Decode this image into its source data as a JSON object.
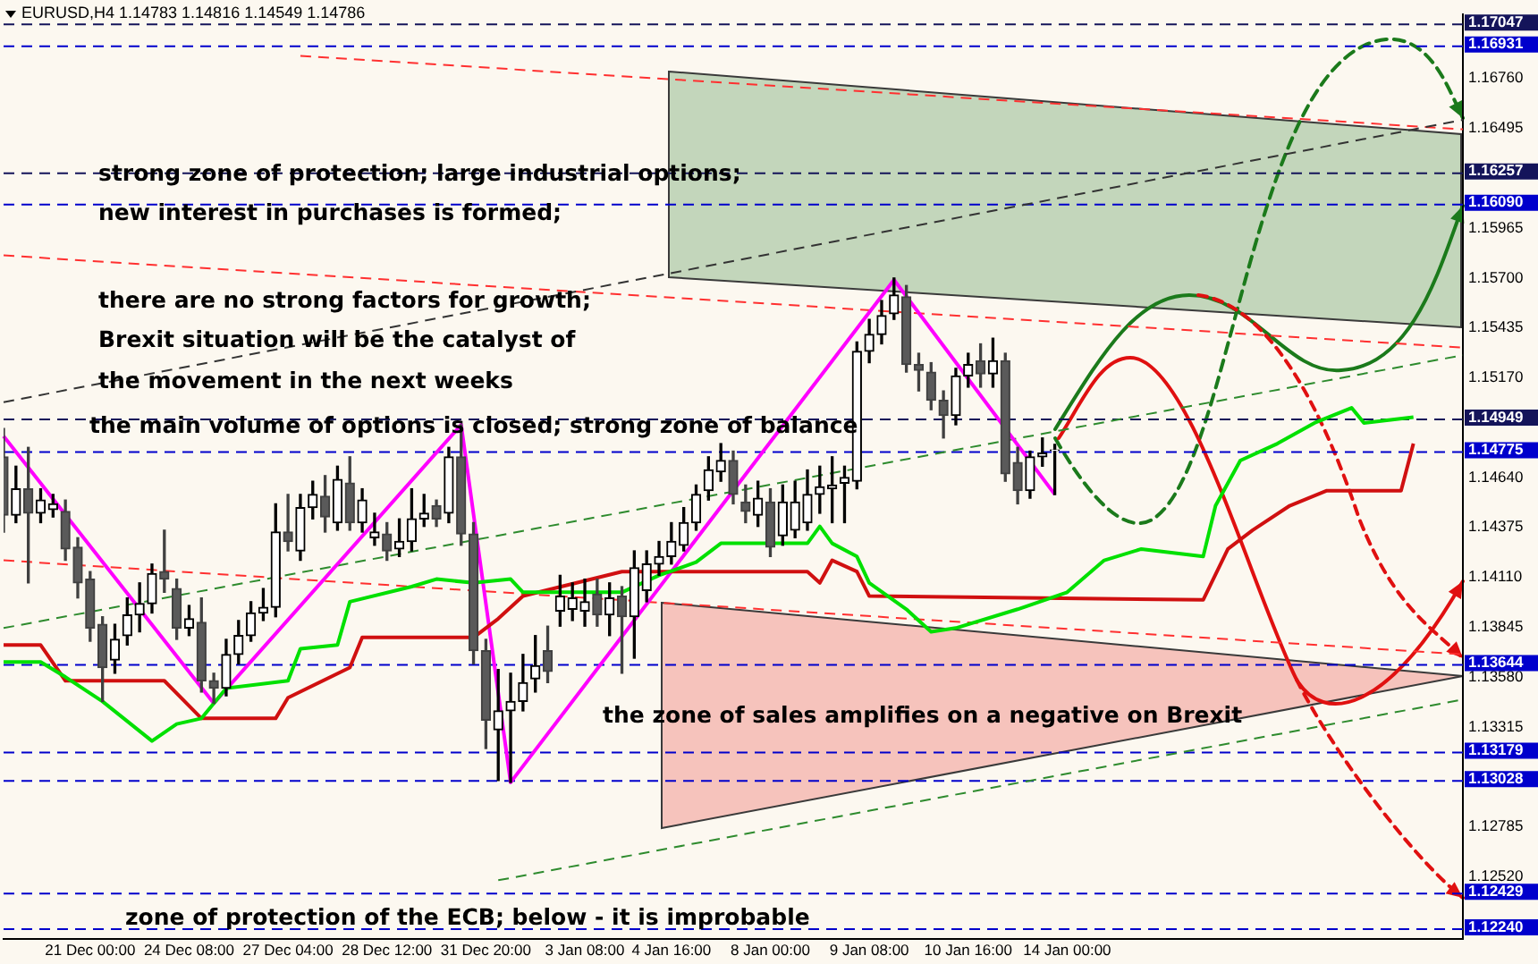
{
  "chart_data": {
    "type": "candlestick",
    "title": "EURUSD,H4 1.14783 1.14816 1.14549 1.14786",
    "categories": [
      null,
      null,
      null,
      null,
      null,
      null,
      null,
      "21 Dec 00:00",
      null,
      null,
      null,
      null,
      null,
      null,
      null,
      "24 Dec 08:00",
      null,
      null,
      null,
      null,
      null,
      null,
      null,
      "27 Dec 04:00",
      null,
      null,
      null,
      null,
      null,
      null,
      null,
      "28 Dec 12:00",
      null,
      null,
      null,
      null,
      null,
      null,
      null,
      "31 Dec 20:00",
      null,
      null,
      null,
      null,
      null,
      null,
      null,
      "3 Jan 08:00",
      null,
      null,
      null,
      null,
      null,
      null,
      "4 Jan 16:00",
      null,
      null,
      null,
      null,
      null,
      null,
      null,
      "8 Jan 00:00",
      null,
      null,
      null,
      null,
      null,
      null,
      null,
      "9 Jan 08:00",
      null,
      null,
      null,
      null,
      null,
      null,
      null,
      "10 Jan 16:00",
      null,
      null,
      null,
      null,
      null,
      null,
      null,
      "14 Jan 00:00",
      null,
      null,
      null,
      null,
      null,
      null,
      null,
      null,
      null,
      null,
      null,
      null,
      null,
      null,
      null,
      null,
      null,
      null,
      null,
      null,
      null,
      null,
      null,
      null,
      null,
      null,
      null,
      null,
      null,
      null,
      null,
      null
    ],
    "ohlc": [
      [
        1.1475,
        1.149,
        1.1435,
        1.1444
      ],
      [
        1.1444,
        1.147,
        1.144,
        1.1458
      ],
      [
        1.1458,
        1.148,
        1.1408,
        1.1445
      ],
      [
        1.1445,
        1.1458,
        1.144,
        1.1452
      ],
      [
        1.1447,
        1.1455,
        1.1443,
        1.145
      ],
      [
        1.1446,
        1.1452,
        1.142,
        1.1426
      ],
      [
        1.1427,
        1.1432,
        1.14,
        1.1408
      ],
      [
        1.141,
        1.1414,
        1.1377,
        1.1384
      ],
      [
        1.1386,
        1.139,
        1.1345,
        1.1363
      ],
      [
        1.1367,
        1.1386,
        1.136,
        1.1378
      ],
      [
        1.138,
        1.14,
        1.1375,
        1.1391
      ],
      [
        1.1391,
        1.1408,
        1.1382,
        1.1397
      ],
      [
        1.1397,
        1.1418,
        1.1392,
        1.1413
      ],
      [
        1.1414,
        1.1436,
        1.1403,
        1.141
      ],
      [
        1.1405,
        1.141,
        1.1378,
        1.1384
      ],
      [
        1.1384,
        1.1396,
        1.138,
        1.1389
      ],
      [
        1.1387,
        1.14,
        1.135,
        1.1356
      ],
      [
        1.1356,
        1.136,
        1.1344,
        1.1352
      ],
      [
        1.1352,
        1.1378,
        1.1348,
        1.137
      ],
      [
        1.137,
        1.1388,
        1.1365,
        1.138
      ],
      [
        1.138,
        1.1398,
        1.1377,
        1.1392
      ],
      [
        1.1392,
        1.1405,
        1.1388,
        1.1395
      ],
      [
        1.1395,
        1.145,
        1.139,
        1.1435
      ],
      [
        1.1435,
        1.1455,
        1.1425,
        1.143
      ],
      [
        1.1425,
        1.1455,
        1.142,
        1.1448
      ],
      [
        1.1448,
        1.1462,
        1.1442,
        1.1455
      ],
      [
        1.1454,
        1.1465,
        1.1435,
        1.1443
      ],
      [
        1.144,
        1.147,
        1.1436,
        1.1463
      ],
      [
        1.1461,
        1.1475,
        1.1436,
        1.144
      ],
      [
        1.144,
        1.1458,
        1.1435,
        1.1452
      ],
      [
        1.1432,
        1.1445,
        1.1428,
        1.1435
      ],
      [
        1.1434,
        1.144,
        1.142,
        1.1425
      ],
      [
        1.1426,
        1.1442,
        1.1422,
        1.143
      ],
      [
        1.143,
        1.1458,
        1.1425,
        1.1442
      ],
      [
        1.1442,
        1.1455,
        1.1438,
        1.1445
      ],
      [
        1.1449,
        1.1452,
        1.1438,
        1.1442
      ],
      [
        1.1445,
        1.148,
        1.144,
        1.1475
      ],
      [
        1.1475,
        1.1492,
        1.1428,
        1.1434
      ],
      [
        1.1434,
        1.144,
        1.1365,
        1.1372
      ],
      [
        1.1372,
        1.1378,
        1.132,
        1.1335
      ],
      [
        1.133,
        1.1362,
        1.1303,
        1.134
      ],
      [
        1.134,
        1.136,
        1.1302,
        1.1345
      ],
      [
        1.1345,
        1.137,
        1.134,
        1.1355
      ],
      [
        1.1357,
        1.138,
        1.135,
        1.1364
      ],
      [
        1.1372,
        1.1385,
        1.1355,
        1.1361
      ],
      [
        1.1393,
        1.1412,
        1.1385,
        1.1401
      ],
      [
        1.1394,
        1.1408,
        1.1388,
        1.14
      ],
      [
        1.1393,
        1.141,
        1.1385,
        1.1398
      ],
      [
        1.1402,
        1.141,
        1.1385,
        1.1391
      ],
      [
        1.1391,
        1.1408,
        1.138,
        1.14
      ],
      [
        1.1401,
        1.1406,
        1.136,
        1.139
      ],
      [
        1.139,
        1.1425,
        1.1368,
        1.1416
      ],
      [
        1.1404,
        1.1425,
        1.1398,
        1.1418
      ],
      [
        1.1418,
        1.143,
        1.1412,
        1.1422
      ],
      [
        1.1422,
        1.144,
        1.1418,
        1.143
      ],
      [
        1.1428,
        1.1448,
        1.1425,
        1.144
      ],
      [
        1.144,
        1.146,
        1.1436,
        1.1455
      ],
      [
        1.1457,
        1.1475,
        1.1452,
        1.1468
      ],
      [
        1.1467,
        1.1482,
        1.1462,
        1.1473
      ],
      [
        1.1473,
        1.1478,
        1.145,
        1.1455
      ],
      [
        1.1451,
        1.146,
        1.144,
        1.1446
      ],
      [
        1.1444,
        1.1462,
        1.1438,
        1.1453
      ],
      [
        1.1451,
        1.1458,
        1.1422,
        1.1427
      ],
      [
        1.1433,
        1.146,
        1.1428,
        1.1451
      ],
      [
        1.1436,
        1.1462,
        1.1432,
        1.1451
      ],
      [
        1.144,
        1.1468,
        1.1436,
        1.1455
      ],
      [
        1.1455,
        1.147,
        1.1445,
        1.1459
      ],
      [
        1.1458,
        1.1475,
        1.144,
        1.146
      ],
      [
        1.1461,
        1.147,
        1.144,
        1.1464
      ],
      [
        1.1462,
        1.1536,
        1.1458,
        1.1531
      ],
      [
        1.1531,
        1.1548,
        1.1525,
        1.154
      ],
      [
        1.154,
        1.1558,
        1.1535,
        1.155
      ],
      [
        1.1551,
        1.157,
        1.1548,
        1.1561
      ],
      [
        1.156,
        1.1566,
        1.152,
        1.1524
      ],
      [
        1.1524,
        1.153,
        1.151,
        1.1521
      ],
      [
        1.152,
        1.1525,
        1.15,
        1.1505
      ],
      [
        1.1505,
        1.151,
        1.1485,
        1.1497
      ],
      [
        1.1497,
        1.1522,
        1.1492,
        1.1518
      ],
      [
        1.1518,
        1.153,
        1.1512,
        1.1524
      ],
      [
        1.1526,
        1.1535,
        1.1512,
        1.1519
      ],
      [
        1.1519,
        1.1538,
        1.1512,
        1.1526
      ],
      [
        1.1526,
        1.153,
        1.1462,
        1.1466
      ],
      [
        1.1472,
        1.148,
        1.145,
        1.1457
      ],
      [
        1.1457,
        1.1478,
        1.1453,
        1.1475
      ],
      [
        1.1475,
        1.1485,
        1.147,
        1.1477
      ],
      [
        1.14783,
        1.14816,
        1.14549,
        1.14786
      ],
      null,
      null,
      null,
      null,
      null,
      null,
      null,
      null,
      null,
      null,
      null,
      null,
      null,
      null,
      null,
      null,
      null,
      null,
      null,
      null,
      null,
      null,
      null,
      null,
      null,
      null,
      null,
      null,
      null,
      null,
      null,
      null,
      null
    ],
    "series": [
      {
        "type": "line",
        "color": "#00e000",
        "line_style": "solid",
        "values": [
          1.1366,
          null,
          null,
          1.1366,
          null,
          1.1358,
          null,
          null,
          1.1345,
          null,
          null,
          null,
          1.1324,
          null,
          1.1333,
          null,
          1.1336,
          null,
          1.1352,
          null,
          null,
          null,
          null,
          1.1356,
          1.1373,
          null,
          null,
          1.1375,
          1.1398,
          null,
          null,
          null,
          null,
          1.1406,
          null,
          1.141,
          null,
          null,
          1.1408,
          null,
          null,
          1.141,
          1.1403,
          null,
          null,
          null,
          null,
          null,
          null,
          null,
          1.1403,
          null,
          null,
          1.1412,
          null,
          null,
          1.1419,
          null,
          1.1429,
          null,
          null,
          null,
          null,
          null,
          null,
          1.1429,
          1.1438,
          1.1429,
          null,
          1.1422,
          1.1408,
          null,
          null,
          1.1394,
          null,
          1.1382,
          null,
          1.1384,
          null,
          null,
          null,
          null,
          1.1394,
          null,
          null,
          null,
          1.1403,
          null,
          null,
          1.142,
          null,
          null,
          1.1426,
          null,
          null,
          null,
          null,
          1.1422,
          1.1449,
          null,
          1.1473,
          null,
          null,
          1.1482,
          null,
          null,
          1.1493,
          null,
          null,
          1.1501,
          1.1493,
          null,
          null,
          null,
          1.1496,
          null,
          null,
          null,
          null
        ]
      },
      {
        "type": "line",
        "color": "#d01010",
        "line_style": "solid",
        "values": [
          1.1375,
          null,
          null,
          1.1375,
          null,
          1.1356,
          null,
          null,
          null,
          null,
          null,
          null,
          null,
          1.1356,
          null,
          null,
          1.1336,
          null,
          null,
          null,
          null,
          null,
          1.1336,
          1.1347,
          null,
          null,
          null,
          null,
          1.1363,
          1.1379,
          null,
          null,
          null,
          null,
          null,
          null,
          null,
          null,
          1.1379,
          null,
          1.1389,
          null,
          1.1401,
          null,
          null,
          null,
          null,
          null,
          null,
          null,
          1.1414,
          null,
          null,
          null,
          null,
          null,
          null,
          null,
          null,
          null,
          null,
          null,
          null,
          null,
          null,
          1.1414,
          1.1408,
          1.142,
          null,
          1.1414,
          1.1401,
          null,
          null,
          null,
          null,
          null,
          null,
          null,
          null,
          null,
          null,
          null,
          null,
          null,
          null,
          null,
          null,
          null,
          null,
          null,
          null,
          null,
          null,
          null,
          null,
          null,
          null,
          1.1399,
          null,
          1.1426,
          null,
          1.1436,
          null,
          null,
          1.1449,
          null,
          null,
          1.1457,
          null,
          null,
          null,
          null,
          null,
          1.1457,
          1.1482,
          null,
          null,
          null,
          null
        ]
      },
      {
        "type": "line",
        "color": "#ff00ff",
        "line_style": "solid",
        "values": [
          1.1486,
          null,
          null,
          null,
          null,
          null,
          null,
          null,
          null,
          null,
          null,
          null,
          null,
          null,
          null,
          null,
          null,
          1.1344,
          null,
          null,
          null,
          null,
          null,
          null,
          null,
          null,
          null,
          null,
          null,
          null,
          null,
          null,
          null,
          null,
          null,
          null,
          null,
          1.1492,
          null,
          null,
          null,
          1.1302,
          null,
          null,
          null,
          null,
          null,
          null,
          null,
          null,
          null,
          null,
          null,
          null,
          null,
          null,
          null,
          null,
          null,
          null,
          null,
          null,
          null,
          null,
          null,
          null,
          null,
          null,
          null,
          null,
          null,
          null,
          1.1569,
          null,
          null,
          null,
          null,
          null,
          null,
          null,
          null,
          null,
          null,
          null,
          null,
          1.1455,
          null,
          null,
          null,
          null,
          null,
          null,
          null,
          null,
          null,
          null,
          null,
          null,
          null,
          null,
          null,
          null,
          null,
          null,
          null,
          null,
          null,
          null,
          null,
          null,
          null,
          null,
          null,
          null,
          null,
          null,
          null,
          null,
          null
        ]
      },
      {
        "type": "line",
        "color": "#2e8b2e",
        "line_style": "dashed",
        "values": [
          1.1384,
          null,
          null,
          null,
          null,
          null,
          null,
          null,
          null,
          null,
          null,
          null,
          null,
          null,
          null,
          null,
          null,
          null,
          null,
          null,
          null,
          null,
          null,
          null,
          null,
          null,
          null,
          null,
          null,
          null,
          null,
          null,
          null,
          null,
          null,
          null,
          null,
          null,
          null,
          null,
          null,
          null,
          null,
          null,
          null,
          null,
          null,
          null,
          null,
          null,
          null,
          null,
          null,
          null,
          null,
          null,
          null,
          null,
          null,
          null,
          null,
          null,
          null,
          null,
          null,
          null,
          null,
          null,
          null,
          null,
          null,
          null,
          null,
          null,
          null,
          null,
          null,
          null,
          null,
          null,
          null,
          null,
          null,
          null,
          null,
          null,
          null,
          null,
          null,
          null,
          null,
          null,
          null,
          null,
          null,
          null,
          null,
          null,
          null,
          null,
          null,
          null,
          null,
          null,
          null,
          null,
          null,
          null,
          null,
          null,
          null,
          null,
          null,
          null,
          null,
          null,
          null,
          null,
          1.1529
        ]
      },
      {
        "type": "line",
        "color": "#333333",
        "line_style": "dashed",
        "values": [
          1.1504,
          null,
          null,
          null,
          null,
          null,
          null,
          null,
          null,
          null,
          null,
          null,
          null,
          null,
          null,
          null,
          null,
          null,
          null,
          null,
          null,
          null,
          null,
          null,
          null,
          null,
          null,
          null,
          null,
          null,
          null,
          null,
          null,
          null,
          null,
          null,
          null,
          null,
          null,
          null,
          null,
          null,
          null,
          null,
          null,
          null,
          null,
          null,
          null,
          null,
          null,
          null,
          null,
          null,
          null,
          null,
          null,
          null,
          null,
          null,
          null,
          null,
          null,
          null,
          null,
          null,
          null,
          null,
          null,
          null,
          null,
          null,
          null,
          null,
          null,
          null,
          null,
          null,
          null,
          null,
          null,
          null,
          null,
          null,
          null,
          null,
          null,
          null,
          null,
          null,
          null,
          null,
          null,
          null,
          null,
          null,
          null,
          null,
          null,
          null,
          null,
          null,
          null,
          null,
          null,
          null,
          null,
          null,
          null,
          null,
          null,
          null,
          null,
          null,
          null,
          null,
          null,
          null,
          1.1654
        ]
      },
      {
        "type": "line",
        "color": "#ff3030",
        "line_style": "dashed",
        "values": [
          1.1582,
          null,
          null,
          null,
          null,
          null,
          null,
          null,
          null,
          null,
          null,
          null,
          null,
          null,
          null,
          null,
          null,
          null,
          null,
          null,
          null,
          null,
          null,
          null,
          null,
          null,
          null,
          null,
          null,
          null,
          null,
          null,
          null,
          null,
          null,
          null,
          null,
          null,
          null,
          null,
          null,
          null,
          null,
          null,
          null,
          null,
          null,
          null,
          null,
          null,
          null,
          null,
          null,
          null,
          null,
          null,
          null,
          null,
          null,
          null,
          null,
          null,
          null,
          null,
          null,
          null,
          null,
          null,
          null,
          null,
          null,
          null,
          null,
          null,
          null,
          null,
          null,
          null,
          null,
          null,
          null,
          null,
          null,
          null,
          null,
          null,
          null,
          null,
          null,
          null,
          null,
          null,
          null,
          null,
          null,
          null,
          null,
          null,
          null,
          null,
          null,
          null,
          null,
          null,
          null,
          null,
          null,
          null,
          null,
          null,
          null,
          null,
          null,
          null,
          null,
          null,
          null,
          null,
          1.1533
        ]
      },
      {
        "type": "line",
        "color": "#ff3030",
        "line_style": "dashed",
        "values": [
          1.142,
          null,
          null,
          null,
          null,
          null,
          null,
          null,
          null,
          null,
          null,
          null,
          null,
          null,
          null,
          null,
          null,
          null,
          null,
          null,
          null,
          null,
          null,
          null,
          null,
          null,
          null,
          null,
          null,
          null,
          null,
          null,
          null,
          null,
          null,
          null,
          null,
          null,
          null,
          null,
          null,
          null,
          null,
          null,
          null,
          null,
          null,
          null,
          null,
          null,
          null,
          null,
          null,
          null,
          null,
          null,
          null,
          null,
          null,
          null,
          null,
          null,
          null,
          null,
          null,
          null,
          null,
          null,
          null,
          null,
          null,
          null,
          null,
          null,
          null,
          null,
          null,
          null,
          null,
          null,
          null,
          null,
          null,
          null,
          null,
          null,
          null,
          null,
          null,
          null,
          null,
          null,
          null,
          null,
          null,
          null,
          null,
          null,
          null,
          null,
          null,
          null,
          null,
          null,
          null,
          null,
          null,
          null,
          null,
          null,
          null,
          null,
          null,
          null,
          null,
          null,
          null,
          null,
          1.137
        ]
      },
      {
        "type": "line",
        "color": "#2e8b2e",
        "line_style": "dashed",
        "values": [
          null,
          null,
          null,
          null,
          null,
          null,
          null,
          null,
          null,
          null,
          null,
          null,
          null,
          null,
          null,
          null,
          null,
          null,
          null,
          null,
          null,
          null,
          null,
          null,
          null,
          null,
          null,
          null,
          null,
          null,
          null,
          null,
          null,
          null,
          null,
          null,
          null,
          null,
          null,
          null,
          1.125,
          null,
          null,
          null,
          null,
          null,
          null,
          null,
          null,
          null,
          null,
          null,
          null,
          null,
          null,
          null,
          null,
          null,
          null,
          null,
          null,
          null,
          null,
          null,
          null,
          null,
          null,
          null,
          null,
          null,
          null,
          null,
          null,
          null,
          null,
          null,
          null,
          null,
          null,
          null,
          null,
          null,
          null,
          null,
          null,
          null,
          null,
          null,
          null,
          null,
          null,
          null,
          null,
          null,
          null,
          null,
          null,
          null,
          null,
          null,
          null,
          null,
          null,
          null,
          null,
          null,
          null,
          null,
          null,
          null,
          null,
          null,
          null,
          null,
          null,
          null,
          null,
          null,
          1.1346
        ]
      },
      {
        "type": "line",
        "color": "#ff3030",
        "line_style": "dashed",
        "values": [
          null,
          null,
          null,
          null,
          null,
          null,
          null,
          null,
          null,
          null,
          null,
          null,
          null,
          null,
          null,
          null,
          null,
          null,
          null,
          null,
          null,
          null,
          null,
          null,
          1.1688,
          null,
          null,
          null,
          null,
          null,
          null,
          null,
          null,
          null,
          null,
          null,
          null,
          null,
          null,
          null,
          null,
          null,
          null,
          null,
          null,
          null,
          null,
          null,
          null,
          null,
          null,
          null,
          null,
          null,
          null,
          null,
          null,
          null,
          null,
          null,
          null,
          null,
          null,
          null,
          null,
          null,
          null,
          null,
          null,
          null,
          null,
          null,
          null,
          null,
          null,
          null,
          null,
          null,
          null,
          null,
          null,
          null,
          null,
          null,
          null,
          null,
          null,
          null,
          null,
          null,
          null,
          null,
          null,
          null,
          null,
          null,
          null,
          null,
          null,
          null,
          null,
          null,
          null,
          null,
          null,
          null,
          null,
          null,
          null,
          null,
          null,
          null,
          null,
          null,
          null,
          null,
          null,
          null,
          1.1649
        ]
      }
    ],
    "ylim": [
      1.1219,
      1.171
    ],
    "yticks": [
      {
        "value": 1.1676,
        "label": "1.16760"
      },
      {
        "value": 1.16495,
        "label": "1.16495"
      },
      {
        "value": 1.15965,
        "label": "1.15965"
      },
      {
        "value": 1.157,
        "label": "1.15700"
      },
      {
        "value": 1.15435,
        "label": "1.15435"
      },
      {
        "value": 1.1517,
        "label": "1.15170"
      },
      {
        "value": 1.1464,
        "label": "1.14640"
      },
      {
        "value": 1.14375,
        "label": "1.14375"
      },
      {
        "value": 1.1411,
        "label": "1.14110"
      },
      {
        "value": 1.13845,
        "label": "1.13845"
      },
      {
        "value": 1.1358,
        "label": "1.13580"
      },
      {
        "value": 1.13315,
        "label": "1.13315"
      },
      {
        "value": 1.12785,
        "label": "1.12785"
      },
      {
        "value": 1.1252,
        "label": "1.12520"
      }
    ],
    "ref_lines": [
      {
        "axis": "y",
        "value": 1.17047,
        "label": "1.17047",
        "color": "#14145a",
        "line_style": "dashed"
      },
      {
        "axis": "y",
        "value": 1.16931,
        "label": "1.16931",
        "color": "#0000cc",
        "line_style": "dashed"
      },
      {
        "axis": "y",
        "value": 1.16257,
        "label": "1.16257",
        "color": "#14145a",
        "line_style": "dashed"
      },
      {
        "axis": "y",
        "value": 1.1609,
        "label": "1.16090",
        "color": "#0000cc",
        "line_style": "dashed"
      },
      {
        "axis": "y",
        "value": 1.14949,
        "label": "1.14949",
        "color": "#14145a",
        "line_style": "dashed"
      },
      {
        "axis": "y",
        "value": 1.14775,
        "label": "1.14775",
        "color": "#0000cc",
        "line_style": "dashed"
      },
      {
        "axis": "y",
        "value": 1.13644,
        "label": "1.13644",
        "color": "#0000cc",
        "line_style": "dashed"
      },
      {
        "axis": "y",
        "value": 1.13179,
        "label": "1.13179",
        "color": "#0000cc",
        "line_style": "dashed"
      },
      {
        "axis": "y",
        "value": 1.13028,
        "label": "1.13028",
        "color": "#0000cc",
        "line_style": "dashed"
      },
      {
        "axis": "y",
        "value": 1.12429,
        "label": "1.12429",
        "color": "#0000cc",
        "line_style": "dashed"
      },
      {
        "axis": "y",
        "value": 1.1224,
        "label": "1.12240",
        "color": "#0000cc",
        "line_style": "dashed"
      }
    ],
    "annotations": [
      "strong zone of protection; large industrial options;",
      "new interest in purchases is formed;",
      "there are no strong factors for growth;",
      "Brexit situation will be the catalyst of",
      "the movement in the next weeks",
      "the main volume of options is closed; strong zone of balance",
      "the zone of sales amplifies on a negative on Brexit",
      "zone of protection of the ECB; below - it is improbable"
    ],
    "legend": false,
    "grid": false,
    "marker": "none"
  }
}
